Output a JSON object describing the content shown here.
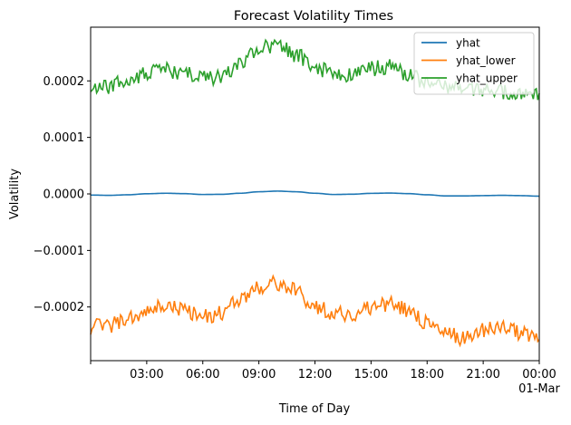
{
  "chart_data": {
    "type": "line",
    "title": "Forecast Volatility Times",
    "xlabel": "Time of Day",
    "ylabel": "Volatility",
    "x_range_hours": [
      0,
      24
    ],
    "ylim": [
      -0.000295,
      0.000295
    ],
    "x_ticks": [
      {
        "hour": 3,
        "label": "03:00"
      },
      {
        "hour": 6,
        "label": "06:00"
      },
      {
        "hour": 9,
        "label": "09:00"
      },
      {
        "hour": 12,
        "label": "12:00"
      },
      {
        "hour": 15,
        "label": "15:00"
      },
      {
        "hour": 18,
        "label": "18:00"
      },
      {
        "hour": 21,
        "label": "21:00"
      },
      {
        "hour": 24,
        "label": "00:00",
        "sublabel": "01-Mar"
      }
    ],
    "y_ticks": [
      {
        "value": -0.0002,
        "label": "−0.0002"
      },
      {
        "value": -0.0001,
        "label": "−0.0001"
      },
      {
        "value": 0.0,
        "label": "0.0000"
      },
      {
        "value": 0.0001,
        "label": "0.0001"
      },
      {
        "value": 0.0002,
        "label": "0.0002"
      }
    ],
    "legend_position": "upper right",
    "series": [
      {
        "name": "yhat",
        "color": "#1f77b4",
        "x": [
          0,
          1,
          2,
          3,
          4,
          5,
          6,
          7,
          8,
          9,
          10,
          11,
          12,
          13,
          14,
          15,
          16,
          17,
          18,
          19,
          20,
          21,
          22,
          23,
          24
        ],
        "values": [
          -2e-06,
          -2.5e-06,
          -1.5e-06,
          3e-07,
          1.2e-06,
          5e-07,
          -1e-06,
          -7e-07,
          1.2e-06,
          3.8e-06,
          5e-06,
          3.8e-06,
          1.2e-06,
          -1e-06,
          -5e-07,
          1e-06,
          1.5e-06,
          5e-07,
          -1.5e-06,
          -3.5e-06,
          -3.5e-06,
          -3e-06,
          -2.5e-06,
          -3e-06,
          -4e-06
        ]
      },
      {
        "name": "yhat_lower",
        "color": "#ff7f0e",
        "x": [
          0,
          1,
          2,
          3,
          4,
          5,
          6,
          7,
          8,
          9,
          10,
          11,
          12,
          13,
          14,
          15,
          16,
          17,
          18,
          19,
          20,
          21,
          22,
          23,
          24
        ],
        "values": [
          -0.000235,
          -0.000232,
          -0.000222,
          -0.00021,
          -0.000198,
          -0.000205,
          -0.000218,
          -0.000212,
          -0.000185,
          -0.000165,
          -0.000158,
          -0.000172,
          -0.0002,
          -0.00021,
          -0.000215,
          -0.0002,
          -0.000195,
          -0.000205,
          -0.000228,
          -0.000248,
          -0.000255,
          -0.00024,
          -0.000235,
          -0.000245,
          -0.000255
        ]
      },
      {
        "name": "yhat_upper",
        "color": "#2ca02c",
        "x": [
          0,
          1,
          2,
          3,
          4,
          5,
          6,
          7,
          8,
          9,
          10,
          11,
          12,
          13,
          14,
          15,
          16,
          17,
          18,
          19,
          20,
          21,
          22,
          23,
          24
        ],
        "values": [
          0.000185,
          0.00019,
          0.0002,
          0.000215,
          0.00022,
          0.000212,
          0.000205,
          0.000208,
          0.00023,
          0.00026,
          0.000262,
          0.000245,
          0.000225,
          0.00021,
          0.000212,
          0.000222,
          0.000225,
          0.00021,
          0.000195,
          0.00019,
          0.000185,
          0.000185,
          0.00018,
          0.000175,
          0.00018
        ]
      }
    ]
  }
}
